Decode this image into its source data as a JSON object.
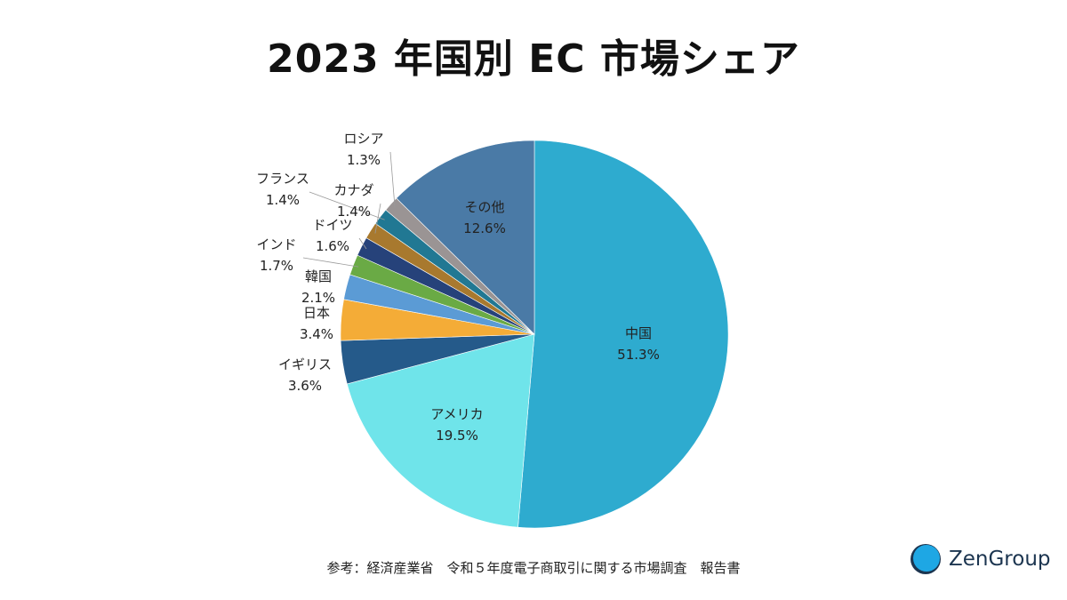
{
  "title": "2023 年国別 EC 市場シェア",
  "footnote": "参考：経済産業省　令和５年度電子商取引に関する市場調査　報告書",
  "logo": {
    "text": "ZenGroup",
    "icon": "zengroup-logo-icon",
    "color": "#1ea7e4"
  },
  "chart_data": {
    "type": "pie",
    "title": "2023 年国別 EC 市場シェア",
    "start": "12 o'clock, clockwise",
    "categories": [
      "中国",
      "アメリカ",
      "イギリス",
      "日本",
      "韓国",
      "インド",
      "ドイツ",
      "カナダ",
      "フランス",
      "ロシア",
      "その他"
    ],
    "values": [
      51.3,
      19.5,
      3.6,
      3.4,
      2.1,
      1.7,
      1.6,
      1.4,
      1.4,
      1.3,
      12.6
    ],
    "labels": [
      "51.3%",
      "19.5%",
      "3.6%",
      "3.4%",
      "2.1%",
      "1.7%",
      "1.6%",
      "1.4%",
      "1.4%",
      "1.3%",
      "12.6%"
    ],
    "colors": [
      "#2eabcf",
      "#6fe4ea",
      "#255a8a",
      "#f4ac37",
      "#5b9bd5",
      "#6aaa45",
      "#26427a",
      "#a8792e",
      "#217893",
      "#9a9494",
      "#4a7aa6"
    ]
  }
}
